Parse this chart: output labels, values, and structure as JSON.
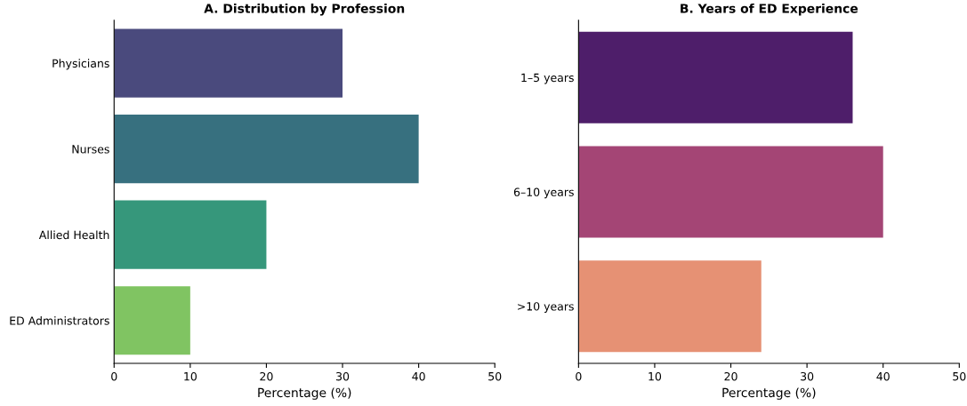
{
  "chart_data": [
    {
      "type": "bar",
      "orientation": "horizontal",
      "title": "A. Distribution by Profession",
      "xlabel": "Percentage (%)",
      "categories": [
        "Physicians",
        "Nurses",
        "Allied Health",
        "ED Administrators"
      ],
      "values": [
        30,
        40,
        20,
        10
      ],
      "colors": [
        "#4a4a7d",
        "#37707f",
        "#36977b",
        "#80c462"
      ],
      "xlim": [
        0,
        50
      ],
      "xticks": [
        0,
        10,
        20,
        30,
        40,
        50
      ],
      "grid": false,
      "legend": false
    },
    {
      "type": "bar",
      "orientation": "horizontal",
      "title": "B. Years of ED Experience",
      "xlabel": "Percentage (%)",
      "categories": [
        "1–5 years",
        "6–10 years",
        ">10 years"
      ],
      "values": [
        36,
        40,
        24
      ],
      "colors": [
        "#4e1e6a",
        "#a44575",
        "#e69174"
      ],
      "xlim": [
        0,
        50
      ],
      "xticks": [
        0,
        10,
        20,
        30,
        40,
        50
      ],
      "grid": false,
      "legend": false
    }
  ]
}
